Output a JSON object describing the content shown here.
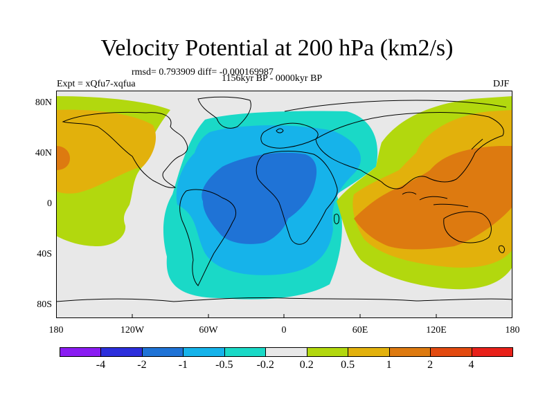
{
  "title": "Velocity Potential at 200 hPa (km2/s)",
  "stats_line": "rmsd= 0.793909 diff= -0.000169987",
  "experiment": "Expt = xQfu7-xqfua",
  "period": "1156kyr BP - 0000kyr BP",
  "season": "DJF",
  "lat_labels": [
    "80N",
    "40N",
    "0",
    "40S",
    "80S"
  ],
  "lon_labels": [
    "180",
    "120W",
    "60W",
    "0",
    "60E",
    "120E",
    "180"
  ],
  "colorbar": {
    "colors": [
      "#8a1cf2",
      "#2d2fdc",
      "#1f73d6",
      "#16b3ea",
      "#1ad9c7",
      "#e8e8e8",
      "#b2d80e",
      "#e2b10c",
      "#dd7a10",
      "#e24a10",
      "#e8211a"
    ],
    "labels": [
      "-4",
      "-2",
      "-1",
      "-0.5",
      "-0.2",
      "0.2",
      "0.5",
      "1",
      "2",
      "4"
    ]
  },
  "colors": {
    "background": "#e8e8e8",
    "neg_weak": "#1ad9c7",
    "neg_mid": "#16b3ea",
    "neg_strong": "#1f73d6",
    "pos_weak": "#b2d80e",
    "pos_mid": "#e2b10c",
    "pos_strong": "#dd7a10"
  }
}
